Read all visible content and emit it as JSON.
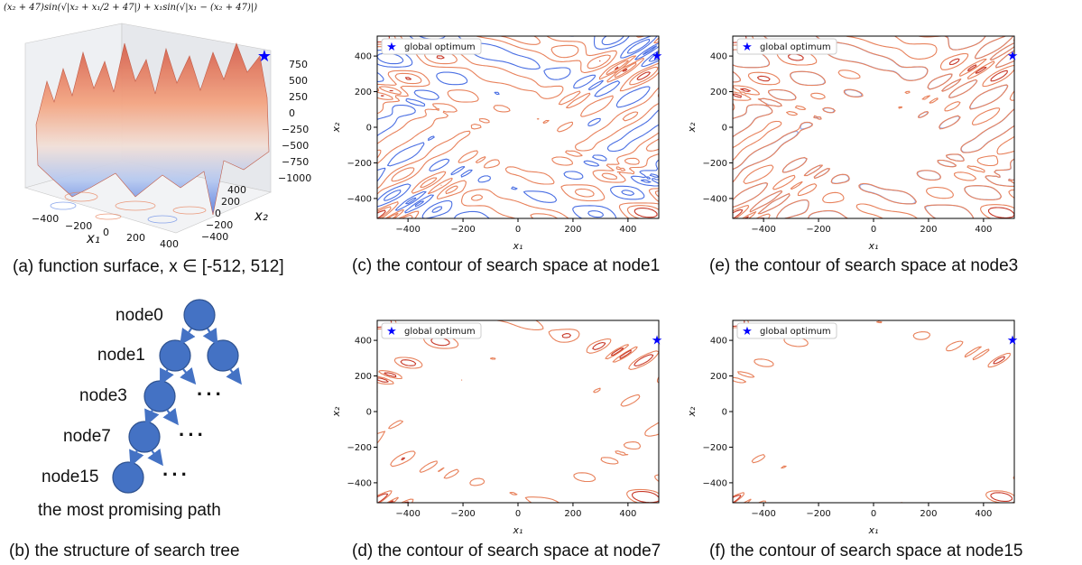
{
  "figure": {
    "formula": "(x₂ + 47)sin(√|x₂ + x₁/2 + 47|) + x₁sin(√|x₁ − (x₂ + 47)|)",
    "caption_a": "(a) function surface, x ∈ [-512, 512]",
    "caption_b": "(b) the structure of search tree",
    "caption_c": "(c) the contour of  search space at node1",
    "caption_d": "(d) the contour of  search space at node7",
    "caption_e": "(e) the contour of  search space at node3",
    "caption_f": "(f) the contour of  search space at node15"
  },
  "surface": {
    "x1_label": "x₁",
    "x2_label": "x₂",
    "x1_ticks": [
      "−400",
      "−200",
      "0",
      "200",
      "400"
    ],
    "x2_ticks": [
      "400",
      "200",
      "0",
      "−200",
      "−400"
    ],
    "z_ticks": [
      "750",
      "500",
      "250",
      "0",
      "−250",
      "−500",
      "−750",
      "−1000"
    ],
    "marker": "star",
    "marker_color": "#0000ff"
  },
  "tree": {
    "nodes": [
      "node0",
      "node1",
      "node3",
      "node7",
      "node15"
    ],
    "ellipsis": "···",
    "path_label": "the most promising path",
    "node_color": "#4472c4"
  },
  "chart_data": [
    {
      "panel": "c",
      "type": "contour",
      "xlabel": "x₁",
      "ylabel": "x₂",
      "xlim": [
        -512,
        512
      ],
      "ylim": [
        -512,
        512
      ],
      "xticks": [
        -400,
        -200,
        0,
        200,
        400
      ],
      "yticks": [
        -400,
        -200,
        0,
        200,
        400
      ],
      "legend": "global optimum",
      "legend_position": "top-left",
      "global_optimum": {
        "x": 512,
        "y": 404.2
      },
      "marker_color": "#0000ff",
      "contour_colors": [
        "#4a6fe3",
        "#e8825c",
        "#c83a2a"
      ],
      "contour_set": "full"
    },
    {
      "panel": "e",
      "type": "contour",
      "xlabel": "x₁",
      "ylabel": "x₂",
      "xlim": [
        -512,
        512
      ],
      "ylim": [
        -512,
        512
      ],
      "xticks": [
        -400,
        -200,
        0,
        200,
        400
      ],
      "yticks": [
        -400,
        -200,
        0,
        200,
        400
      ],
      "legend": "global optimum",
      "legend_position": "top-left",
      "global_optimum": {
        "x": 512,
        "y": 404.2
      },
      "marker_color": "#0000ff",
      "contour_colors": [
        "#8fa6e8",
        "#e8825c",
        "#c83a2a"
      ],
      "contour_set": "reduced"
    },
    {
      "panel": "d",
      "type": "contour",
      "xlabel": "x₁",
      "ylabel": "x₂",
      "xlim": [
        -512,
        512
      ],
      "ylim": [
        -512,
        512
      ],
      "xticks": [
        -400,
        -200,
        0,
        200,
        400
      ],
      "yticks": [
        -400,
        -200,
        0,
        200,
        400
      ],
      "legend": "global optimum",
      "legend_position": "top-left",
      "global_optimum": {
        "x": 512,
        "y": 404.2
      },
      "marker_color": "#0000ff",
      "contour_colors": [
        "#e8825c",
        "#c83a2a"
      ],
      "contour_set": "sparse"
    },
    {
      "panel": "f",
      "type": "contour",
      "xlabel": "x₁",
      "ylabel": "x₂",
      "xlim": [
        -512,
        512
      ],
      "ylim": [
        -512,
        512
      ],
      "xticks": [
        -400,
        -200,
        0,
        200,
        400
      ],
      "yticks": [
        -400,
        -200,
        0,
        200,
        400
      ],
      "legend": "global optimum",
      "legend_position": "top-left",
      "global_optimum": {
        "x": 512,
        "y": 404.2
      },
      "marker_color": "#0000ff",
      "contour_colors": [
        "#e8825c",
        "#c83a2a"
      ],
      "contour_set": "minimal"
    }
  ]
}
